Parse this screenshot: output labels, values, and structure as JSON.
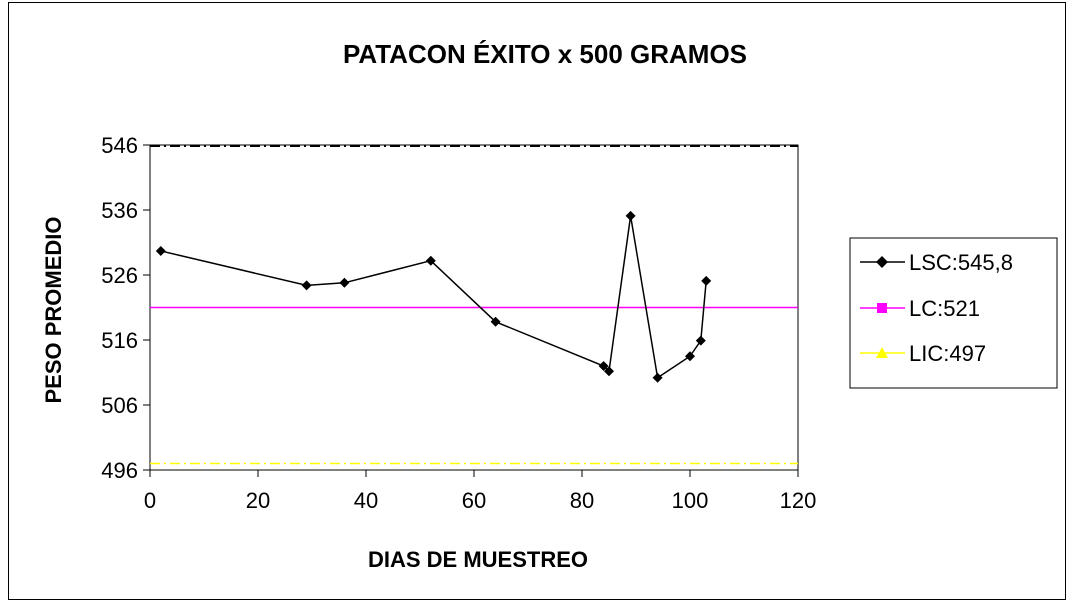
{
  "chart_data": {
    "type": "line",
    "title": "PATACON ÉXITO x 500 GRAMOS",
    "xlabel": "DIAS DE MUESTREO",
    "ylabel": "PESO PROMEDIO",
    "xlim": [
      0,
      120
    ],
    "ylim": [
      496,
      546
    ],
    "x_ticks": [
      0,
      20,
      40,
      60,
      80,
      100,
      120
    ],
    "y_ticks": [
      496,
      506,
      516,
      526,
      536,
      546
    ],
    "grid": false,
    "legend_position": "right",
    "series": [
      {
        "name": "LSC:545,8",
        "color": "#000000",
        "marker": "diamond",
        "points": [
          {
            "x": 2,
            "y": 529.7
          },
          {
            "x": 29,
            "y": 524.4
          },
          {
            "x": 36,
            "y": 524.8
          },
          {
            "x": 52,
            "y": 528.2
          },
          {
            "x": 64,
            "y": 518.8
          },
          {
            "x": 84,
            "y": 512.0
          },
          {
            "x": 85,
            "y": 511.2
          },
          {
            "x": 89,
            "y": 535.1
          },
          {
            "x": 94,
            "y": 510.2
          },
          {
            "x": 100,
            "y": 513.5
          },
          {
            "x": 102,
            "y": 515.9
          },
          {
            "x": 103,
            "y": 525.1
          }
        ]
      },
      {
        "name": "LC:521",
        "color": "#ff00ff",
        "marker": "square",
        "value": 521
      },
      {
        "name": "LIC:497",
        "color": "#ffff00",
        "marker": "triangle",
        "value": 497
      }
    ],
    "reference_lines": [
      {
        "value": 545.8,
        "color": "#000000",
        "style": "dash-dot"
      },
      {
        "value": 521,
        "color": "#ff00ff",
        "style": "solid"
      },
      {
        "value": 497,
        "color": "#ffff00",
        "style": "dash-dot"
      }
    ]
  }
}
